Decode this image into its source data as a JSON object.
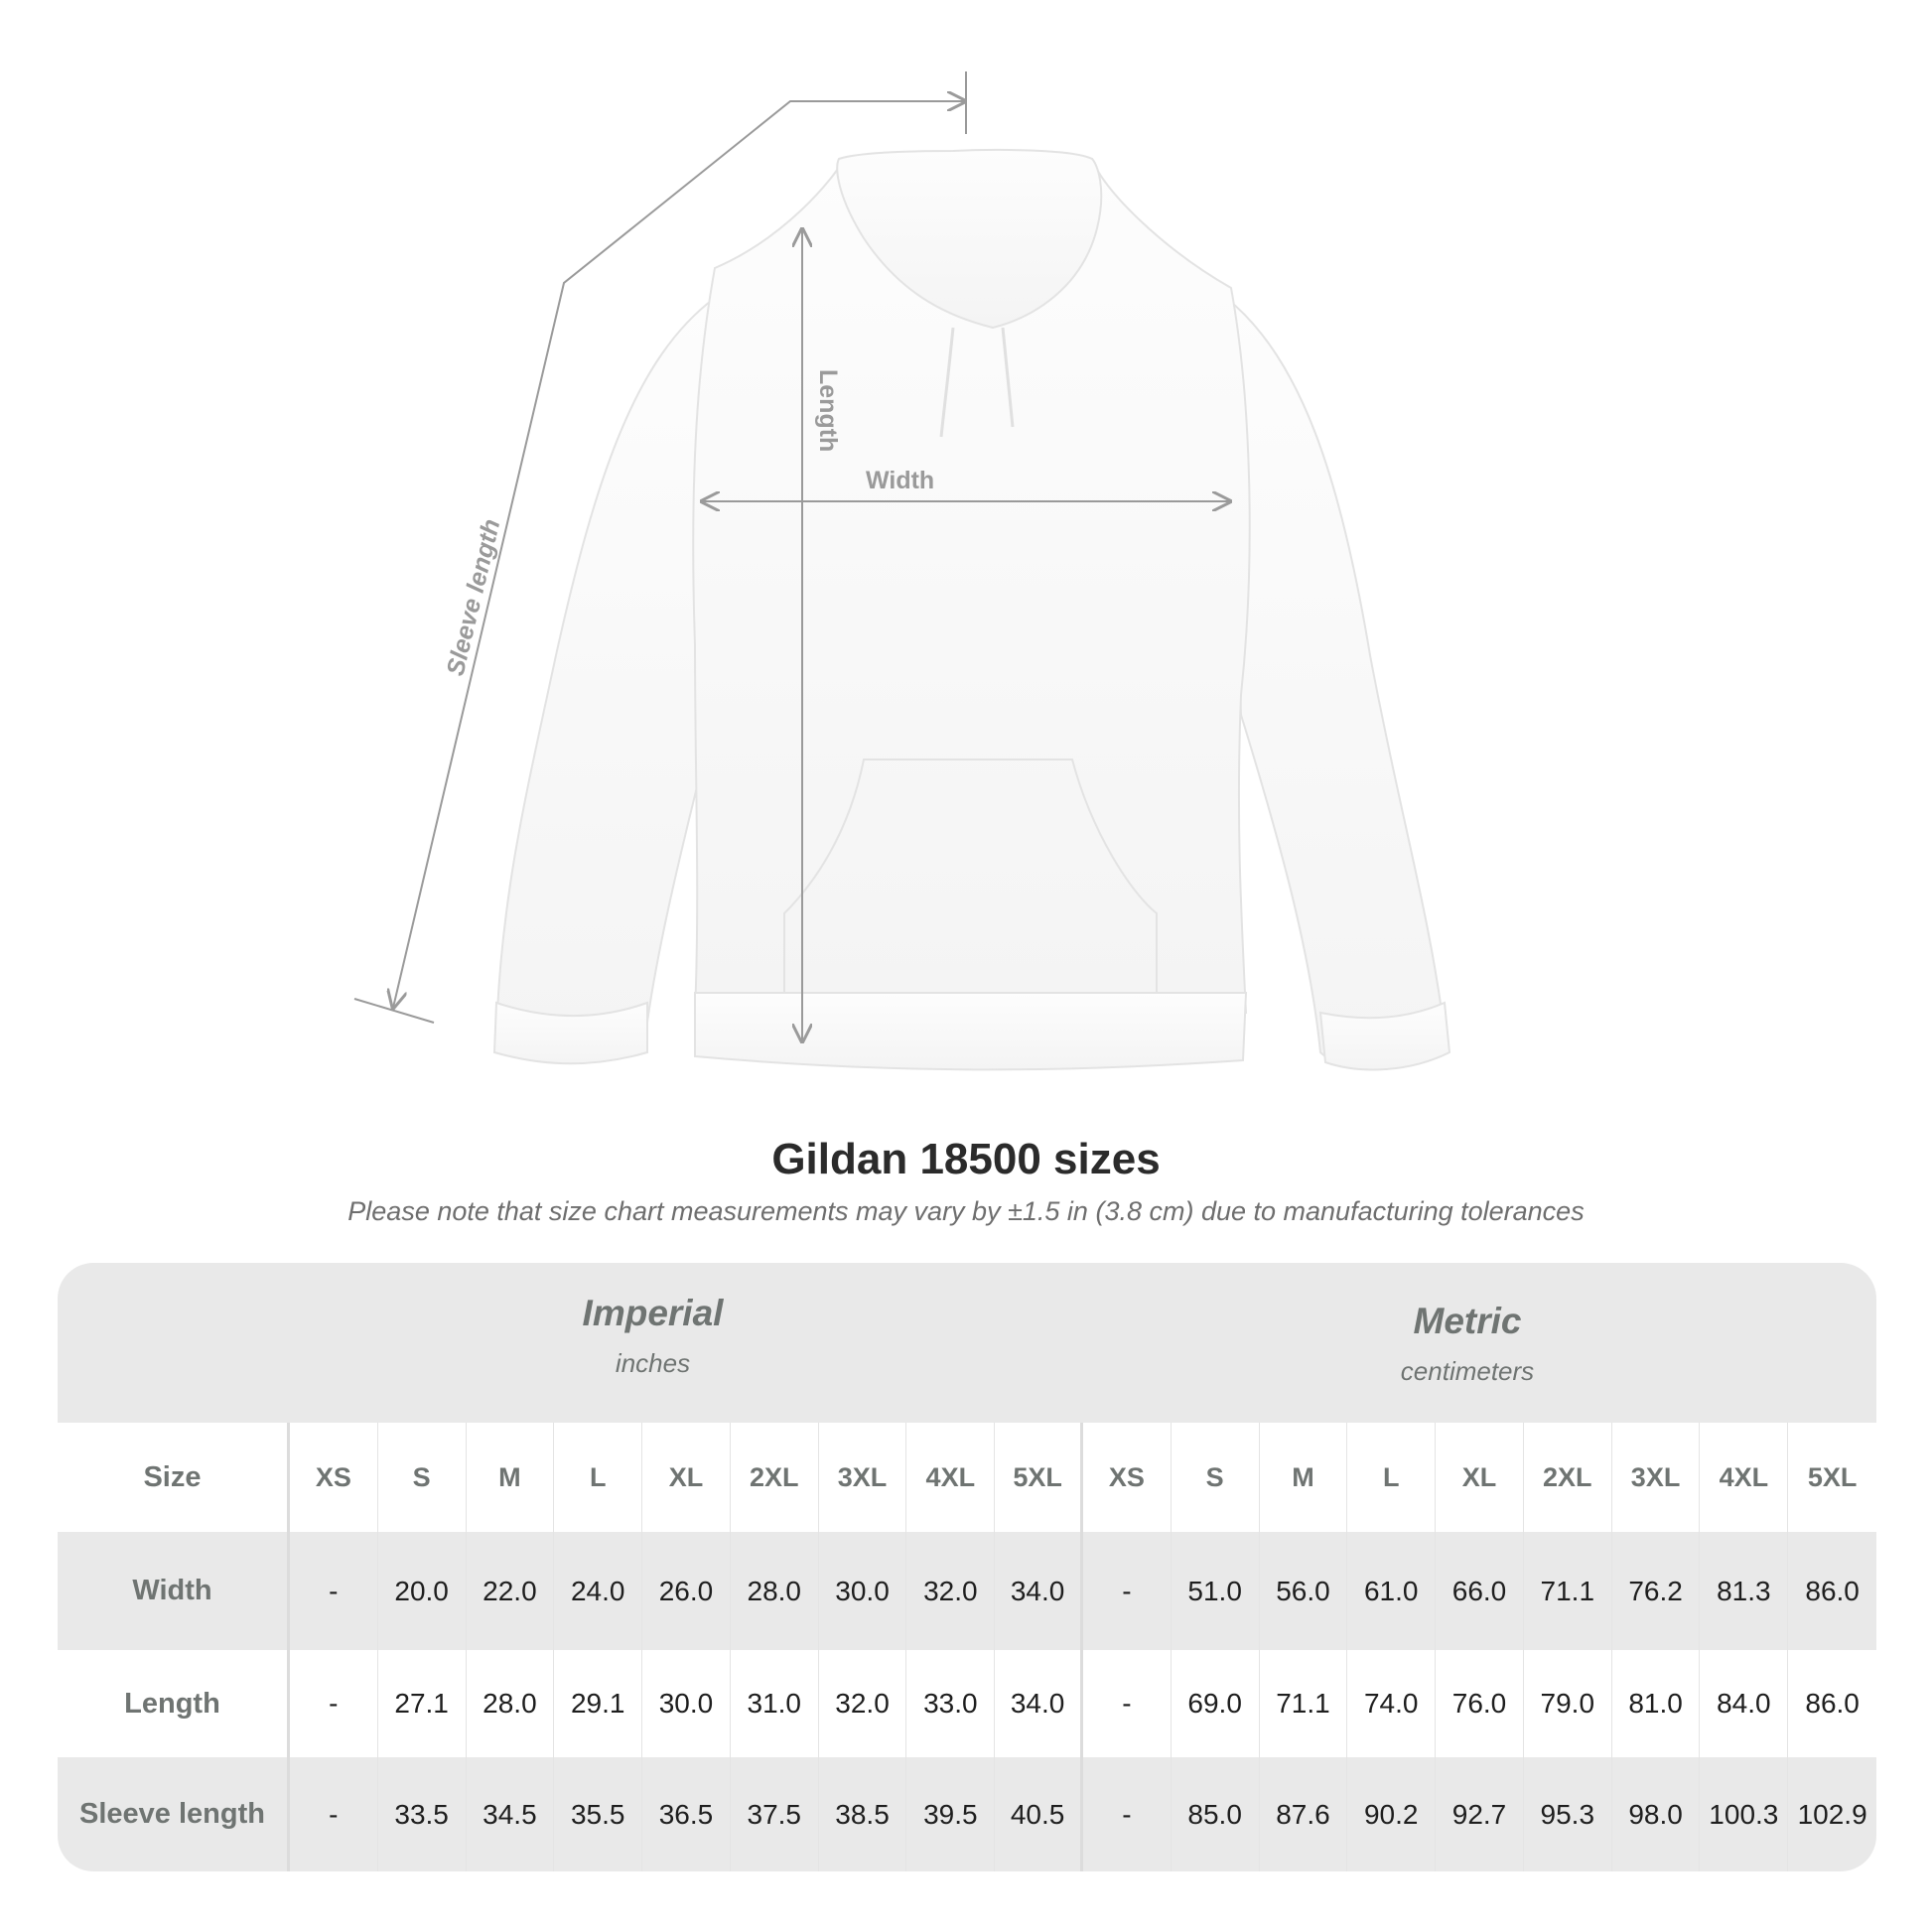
{
  "diagram": {
    "labels": {
      "length": "Length",
      "width": "Width",
      "sleeve": "Sleeve length"
    }
  },
  "title": "Gildan 18500 sizes",
  "note": "Please note that size chart measurements may vary by ±1.5 in (3.8 cm) due to manufacturing tolerances",
  "table": {
    "imperial": {
      "title": "Imperial",
      "unit": "inches"
    },
    "metric": {
      "title": "Metric",
      "unit": "centimeters"
    },
    "header_label": "Size",
    "sizes": [
      "XS",
      "S",
      "M",
      "L",
      "XL",
      "2XL",
      "3XL",
      "4XL",
      "5XL"
    ],
    "rows": [
      {
        "label": "Width",
        "imperial": [
          "-",
          "20.0",
          "22.0",
          "24.0",
          "26.0",
          "28.0",
          "30.0",
          "32.0",
          "34.0"
        ],
        "metric": [
          "-",
          "51.0",
          "56.0",
          "61.0",
          "66.0",
          "71.1",
          "76.2",
          "81.3",
          "86.0"
        ]
      },
      {
        "label": "Length",
        "imperial": [
          "-",
          "27.1",
          "28.0",
          "29.1",
          "30.0",
          "31.0",
          "32.0",
          "33.0",
          "34.0"
        ],
        "metric": [
          "-",
          "69.0",
          "71.1",
          "74.0",
          "76.0",
          "79.0",
          "81.0",
          "84.0",
          "86.0"
        ]
      },
      {
        "label": "Sleeve length",
        "imperial": [
          "-",
          "33.5",
          "34.5",
          "35.5",
          "36.5",
          "37.5",
          "38.5",
          "39.5",
          "40.5"
        ],
        "metric": [
          "-",
          "85.0",
          "87.6",
          "90.2",
          "92.7",
          "95.3",
          "98.0",
          "100.3",
          "102.9"
        ]
      }
    ]
  },
  "colors": {
    "band": "#e9e9e9",
    "label": "#6f7472",
    "measure_line": "#9a9a9a"
  }
}
